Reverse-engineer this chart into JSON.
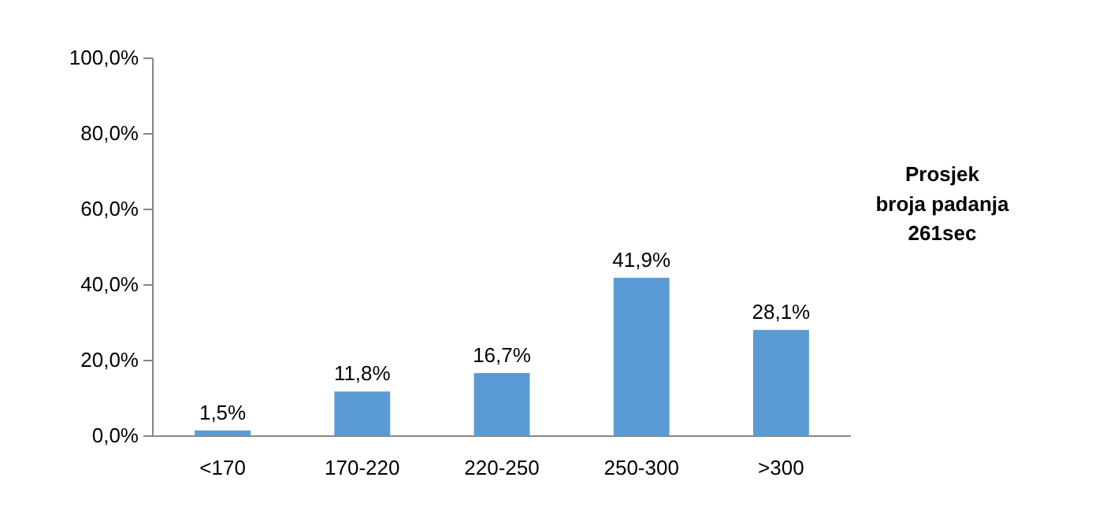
{
  "chart_data": {
    "type": "bar",
    "categories": [
      "<170",
      "170-220",
      "220-250",
      "250-300",
      ">300"
    ],
    "values": [
      1.5,
      11.8,
      16.7,
      41.9,
      28.1
    ],
    "value_labels": [
      "1,5%",
      "11,8%",
      "16,7%",
      "41,9%",
      "28,1%"
    ],
    "color": "#5b9bd5",
    "ylim": [
      0,
      100
    ],
    "yticks": [
      {
        "value": 0,
        "label": "0,0%"
      },
      {
        "value": 20,
        "label": "20,0%"
      },
      {
        "value": 40,
        "label": "40,0%"
      },
      {
        "value": 60,
        "label": "60,0%"
      },
      {
        "value": 80,
        "label": "80,0%"
      },
      {
        "value": 100,
        "label": "100,0%"
      }
    ],
    "grid": false,
    "annotations": [
      "Prosjek\nbroja padanja\n261sec"
    ]
  }
}
